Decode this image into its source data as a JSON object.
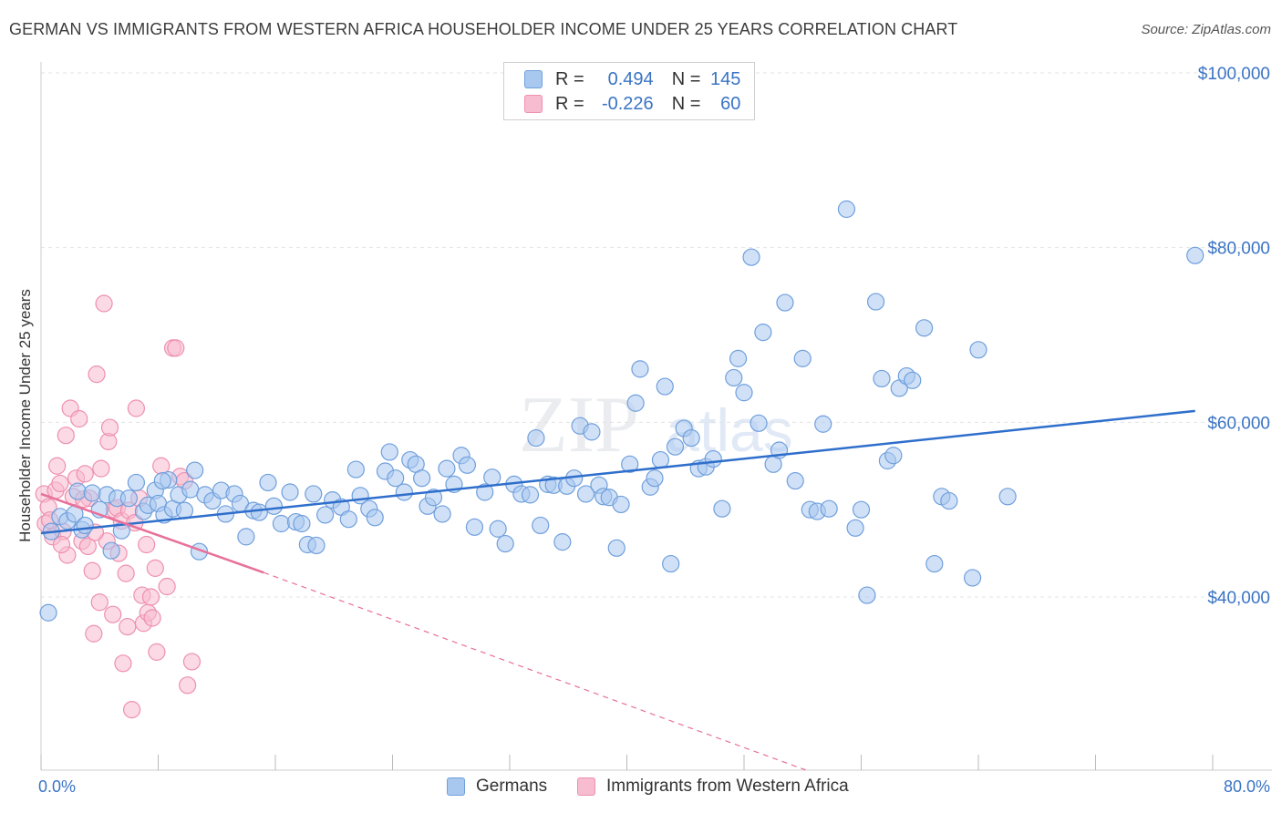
{
  "header": {
    "title": "GERMAN VS IMMIGRANTS FROM WESTERN AFRICA HOUSEHOLDER INCOME UNDER 25 YEARS CORRELATION CHART",
    "source": "Source: ZipAtlas.com"
  },
  "legend_top": {
    "rows": [
      {
        "r_label": "R =",
        "r_value": "0.494",
        "n_label": "N =",
        "n_value": "145"
      },
      {
        "r_label": "R =",
        "r_value": "-0.226",
        "n_label": "N =",
        "n_value": "60"
      }
    ]
  },
  "legend_bottom": {
    "germans": "Germans",
    "immigrants": "Immigrants from Western Africa"
  },
  "watermark": {
    "zip": "ZIP",
    "atlas": "atlas"
  },
  "colors": {
    "blue_fill": "#a9c8f0",
    "blue_stroke": "#6f9fdc",
    "blue_line": "#2f6fcc",
    "pink_fill": "#f7bcd0",
    "pink_stroke": "#ee8fae",
    "pink_line": "#e8709a",
    "tick_text": "#3a74c4"
  },
  "chart_data": {
    "type": "scatter",
    "title": "GERMAN VS IMMIGRANTS FROM WESTERN AFRICA HOUSEHOLDER INCOME UNDER 25 YEARS CORRELATION CHART",
    "xlabel": "",
    "ylabel": "Householder Income Under 25 years",
    "xlim": [
      0,
      80
    ],
    "ylim": [
      20000,
      104000
    ],
    "x_tick_labels": [
      {
        "value": 0,
        "label": "0.0%"
      },
      {
        "value": 80,
        "label": "80.0%"
      }
    ],
    "y_ticks": [
      {
        "value": 40000,
        "label": "$40,000"
      },
      {
        "value": 60000,
        "label": "$60,000"
      },
      {
        "value": 80000,
        "label": "$80,000"
      },
      {
        "value": 100000,
        "label": "$100,000"
      }
    ],
    "grid": true,
    "series": [
      {
        "name": "Germans",
        "color": "#a9c8f0",
        "trend": {
          "x0": 0,
          "y0": 47300,
          "x1": 78.8,
          "y1": 61300,
          "style": "solid"
        },
        "points": [
          [
            0.5,
            38200
          ],
          [
            0.7,
            47500
          ],
          [
            1.3,
            49200
          ],
          [
            1.8,
            48700
          ],
          [
            2.3,
            49500
          ],
          [
            2.5,
            52100
          ],
          [
            2.8,
            47700
          ],
          [
            3.0,
            48200
          ],
          [
            3.5,
            51900
          ],
          [
            4.0,
            50000
          ],
          [
            4.5,
            51700
          ],
          [
            4.8,
            45300
          ],
          [
            5.2,
            51300
          ],
          [
            5.5,
            47600
          ],
          [
            6.0,
            51300
          ],
          [
            6.5,
            53100
          ],
          [
            7.0,
            49800
          ],
          [
            7.3,
            50500
          ],
          [
            7.8,
            52200
          ],
          [
            8.0,
            50700
          ],
          [
            8.4,
            49400
          ],
          [
            8.7,
            53400
          ],
          [
            9.0,
            50100
          ],
          [
            9.4,
            51700
          ],
          [
            9.8,
            49900
          ],
          [
            10.2,
            52300
          ],
          [
            10.5,
            54500
          ],
          [
            10.8,
            45200
          ],
          [
            11.2,
            51700
          ],
          [
            11.7,
            51000
          ],
          [
            12.3,
            52200
          ],
          [
            12.6,
            49500
          ],
          [
            13.2,
            51800
          ],
          [
            13.6,
            50700
          ],
          [
            14.0,
            46900
          ],
          [
            14.5,
            49900
          ],
          [
            14.9,
            49700
          ],
          [
            15.5,
            53100
          ],
          [
            15.9,
            50400
          ],
          [
            16.4,
            48400
          ],
          [
            17.0,
            52000
          ],
          [
            17.4,
            48600
          ],
          [
            17.8,
            48400
          ],
          [
            18.2,
            46000
          ],
          [
            18.6,
            51800
          ],
          [
            18.8,
            45900
          ],
          [
            19.4,
            49400
          ],
          [
            19.9,
            51100
          ],
          [
            20.5,
            50300
          ],
          [
            21.0,
            48900
          ],
          [
            21.5,
            54600
          ],
          [
            21.8,
            51600
          ],
          [
            22.4,
            50100
          ],
          [
            22.8,
            49100
          ],
          [
            23.5,
            54400
          ],
          [
            23.8,
            56600
          ],
          [
            24.2,
            53600
          ],
          [
            24.8,
            52000
          ],
          [
            25.2,
            55700
          ],
          [
            25.6,
            55200
          ],
          [
            26.0,
            53600
          ],
          [
            26.4,
            50400
          ],
          [
            26.8,
            51400
          ],
          [
            27.4,
            49500
          ],
          [
            27.7,
            54700
          ],
          [
            28.2,
            52900
          ],
          [
            28.7,
            56200
          ],
          [
            29.1,
            55100
          ],
          [
            29.6,
            48000
          ],
          [
            30.3,
            52000
          ],
          [
            30.8,
            53700
          ],
          [
            31.2,
            47800
          ],
          [
            31.7,
            46100
          ],
          [
            32.3,
            52900
          ],
          [
            32.8,
            51800
          ],
          [
            33.4,
            51700
          ],
          [
            33.8,
            58200
          ],
          [
            34.1,
            48200
          ],
          [
            34.6,
            52900
          ],
          [
            35.0,
            52800
          ],
          [
            35.6,
            46300
          ],
          [
            35.9,
            52700
          ],
          [
            36.4,
            53600
          ],
          [
            36.8,
            59600
          ],
          [
            37.2,
            51800
          ],
          [
            37.6,
            58900
          ],
          [
            38.1,
            52800
          ],
          [
            38.4,
            51500
          ],
          [
            38.8,
            51400
          ],
          [
            39.3,
            45600
          ],
          [
            39.6,
            50600
          ],
          [
            40.2,
            55200
          ],
          [
            40.6,
            62200
          ],
          [
            40.9,
            66100
          ],
          [
            41.6,
            52600
          ],
          [
            41.9,
            53600
          ],
          [
            42.3,
            55700
          ],
          [
            42.6,
            64100
          ],
          [
            43.0,
            43800
          ],
          [
            43.3,
            57200
          ],
          [
            43.9,
            59300
          ],
          [
            44.4,
            58200
          ],
          [
            44.9,
            54700
          ],
          [
            45.4,
            54900
          ],
          [
            45.9,
            55800
          ],
          [
            46.5,
            50100
          ],
          [
            47.3,
            65100
          ],
          [
            47.6,
            67300
          ],
          [
            48.0,
            63400
          ],
          [
            48.5,
            78900
          ],
          [
            49.0,
            59900
          ],
          [
            49.3,
            70300
          ],
          [
            50.0,
            55200
          ],
          [
            50.4,
            56800
          ],
          [
            50.8,
            73700
          ],
          [
            51.5,
            53300
          ],
          [
            52.0,
            67300
          ],
          [
            52.5,
            50000
          ],
          [
            53.0,
            49800
          ],
          [
            53.4,
            59800
          ],
          [
            53.8,
            50100
          ],
          [
            55.0,
            84400
          ],
          [
            55.6,
            47900
          ],
          [
            56.0,
            50000
          ],
          [
            56.4,
            40200
          ],
          [
            57.0,
            73800
          ],
          [
            57.4,
            65000
          ],
          [
            57.8,
            55600
          ],
          [
            58.2,
            56200
          ],
          [
            58.6,
            63900
          ],
          [
            59.1,
            65300
          ],
          [
            59.5,
            64800
          ],
          [
            60.3,
            70800
          ],
          [
            61.0,
            43800
          ],
          [
            61.5,
            51500
          ],
          [
            62.0,
            51000
          ],
          [
            63.6,
            42200
          ],
          [
            64.0,
            68300
          ],
          [
            66.0,
            51500
          ],
          [
            78.8,
            79100
          ],
          [
            8.3,
            53300
          ]
        ]
      },
      {
        "name": "Immigrants from Western Africa",
        "color": "#f7bcd0",
        "trend": {
          "x0": 0,
          "y0": 51800,
          "x1": 15.2,
          "y1": 42800,
          "style": "solid",
          "extend_to": {
            "x": 52.2,
            "y": 20200
          },
          "extend_style": "dashed"
        },
        "points": [
          [
            0.2,
            51800
          ],
          [
            0.3,
            48400
          ],
          [
            0.5,
            50300
          ],
          [
            0.6,
            48800
          ],
          [
            0.8,
            46900
          ],
          [
            1.0,
            52200
          ],
          [
            1.1,
            55000
          ],
          [
            1.3,
            53000
          ],
          [
            1.5,
            47500
          ],
          [
            1.7,
            58500
          ],
          [
            1.8,
            44800
          ],
          [
            2.0,
            61600
          ],
          [
            2.2,
            51500
          ],
          [
            2.4,
            53600
          ],
          [
            2.6,
            60400
          ],
          [
            2.8,
            46400
          ],
          [
            3.0,
            54100
          ],
          [
            3.2,
            45800
          ],
          [
            3.3,
            51300
          ],
          [
            3.5,
            43000
          ],
          [
            3.6,
            35800
          ],
          [
            3.8,
            65500
          ],
          [
            4.0,
            39400
          ],
          [
            4.1,
            54700
          ],
          [
            4.3,
            73600
          ],
          [
            4.5,
            46400
          ],
          [
            4.6,
            57800
          ],
          [
            4.7,
            59400
          ],
          [
            4.9,
            38000
          ],
          [
            5.0,
            50000
          ],
          [
            5.2,
            50200
          ],
          [
            5.3,
            45000
          ],
          [
            5.5,
            48700
          ],
          [
            5.6,
            32400
          ],
          [
            5.8,
            42700
          ],
          [
            5.9,
            36600
          ],
          [
            6.0,
            49900
          ],
          [
            6.2,
            27100
          ],
          [
            6.4,
            48500
          ],
          [
            6.5,
            61600
          ],
          [
            6.7,
            51300
          ],
          [
            6.9,
            40200
          ],
          [
            7.0,
            37000
          ],
          [
            7.2,
            46000
          ],
          [
            7.3,
            38200
          ],
          [
            7.5,
            40000
          ],
          [
            7.6,
            37600
          ],
          [
            7.8,
            43300
          ],
          [
            7.9,
            33700
          ],
          [
            8.2,
            55000
          ],
          [
            8.6,
            41200
          ],
          [
            9.0,
            68500
          ],
          [
            9.2,
            68500
          ],
          [
            9.5,
            53800
          ],
          [
            9.8,
            53300
          ],
          [
            10.0,
            29900
          ],
          [
            10.3,
            32600
          ],
          [
            1.4,
            46000
          ],
          [
            2.9,
            51200
          ],
          [
            3.7,
            47400
          ]
        ]
      }
    ]
  }
}
